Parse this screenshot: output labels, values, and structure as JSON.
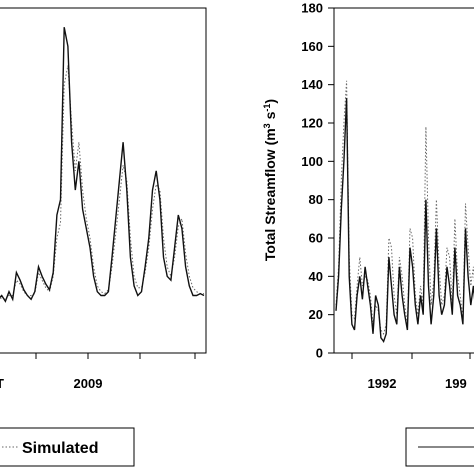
{
  "chart_data": [
    {
      "type": "line",
      "panel": "left",
      "xlabel": "",
      "ylabel": "",
      "x_tick_labels": [
        "T",
        "2009"
      ],
      "series": [
        {
          "name": "",
          "style": "solid",
          "color": "#111111",
          "values": [
            28,
            30,
            27,
            32,
            28,
            42,
            38,
            33,
            30,
            28,
            32,
            45,
            40,
            36,
            33,
            42,
            72,
            80,
            170,
            160,
            110,
            85,
            100,
            75,
            65,
            55,
            40,
            32,
            30,
            30,
            32,
            50,
            70,
            90,
            110,
            85,
            50,
            35,
            30,
            32,
            45,
            60,
            85,
            95,
            80,
            50,
            40,
            38,
            55,
            72,
            65,
            45,
            35,
            30,
            30,
            31,
            30
          ]
        },
        {
          "name": "Simulated",
          "style": "dotted",
          "color": "#666666",
          "values": [
            27,
            29,
            28,
            30,
            30,
            38,
            36,
            32,
            30,
            30,
            31,
            42,
            38,
            34,
            32,
            40,
            60,
            68,
            140,
            150,
            120,
            95,
            110,
            85,
            70,
            60,
            45,
            35,
            32,
            31,
            33,
            45,
            62,
            80,
            98,
            90,
            60,
            40,
            34,
            34,
            42,
            55,
            75,
            88,
            85,
            60,
            45,
            40,
            50,
            66,
            70,
            52,
            40,
            34,
            32,
            31,
            31
          ]
        }
      ]
    },
    {
      "type": "line",
      "panel": "right",
      "ylabel": "Total Streamflow (m³ s⁻¹)",
      "ylabel_main": "Total Streamflow (m",
      "ylabel_sup1": "3",
      "ylabel_mid": " s",
      "ylabel_sup2": "-1",
      "ylabel_end": ")",
      "ylim": [
        0,
        180
      ],
      "y_ticks": [
        "0",
        "20",
        "40",
        "60",
        "80",
        "100",
        "120",
        "140",
        "160",
        "180"
      ],
      "x_tick_labels": [
        "1992",
        "199"
      ],
      "series": [
        {
          "name": "",
          "style": "solid",
          "color": "#111111",
          "values": [
            22,
            40,
            75,
            100,
            133,
            40,
            15,
            12,
            30,
            40,
            28,
            45,
            35,
            25,
            10,
            30,
            25,
            8,
            6,
            10,
            50,
            35,
            20,
            15,
            45,
            30,
            20,
            12,
            55,
            45,
            25,
            15,
            30,
            20,
            80,
            35,
            15,
            30,
            65,
            30,
            20,
            25,
            45,
            35,
            20,
            55,
            30,
            25,
            15,
            65,
            40,
            25,
            35,
            20,
            15,
            10,
            22
          ]
        },
        {
          "name": "",
          "style": "dotted",
          "color": "#666666",
          "values": [
            25,
            45,
            90,
            120,
            142,
            50,
            20,
            18,
            35,
            50,
            35,
            40,
            38,
            30,
            15,
            25,
            22,
            12,
            10,
            15,
            60,
            55,
            30,
            20,
            50,
            40,
            25,
            15,
            65,
            60,
            30,
            20,
            35,
            25,
            118,
            60,
            25,
            38,
            80,
            45,
            25,
            30,
            55,
            50,
            25,
            70,
            40,
            30,
            18,
            78,
            55,
            35,
            45,
            25,
            18,
            12,
            25
          ]
        }
      ]
    }
  ],
  "legend_left": {
    "entries": [
      "Simulated"
    ]
  },
  "legend_right": {
    "entries": [
      ""
    ]
  }
}
